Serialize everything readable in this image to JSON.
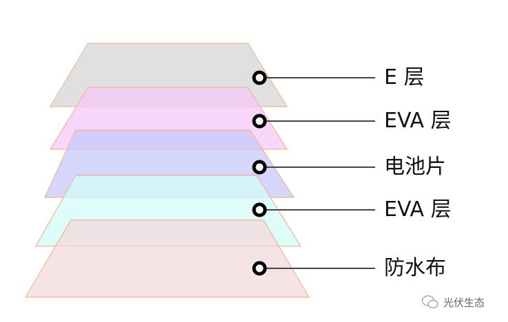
{
  "layers": [
    {
      "label": "E 层",
      "fill": "#d6d6d6"
    },
    {
      "label": "EVA 层",
      "fill": "#f5c8f8"
    },
    {
      "label": "电池片",
      "fill": "#c8c8fa"
    },
    {
      "label": "EVA 层",
      "fill": "#d2fbf8"
    },
    {
      "label": "防水布",
      "fill": "#f3dadd"
    }
  ],
  "edge_color": "#f3b593",
  "watermark": {
    "text": "光伏生态",
    "icon": "wechat-icon"
  }
}
